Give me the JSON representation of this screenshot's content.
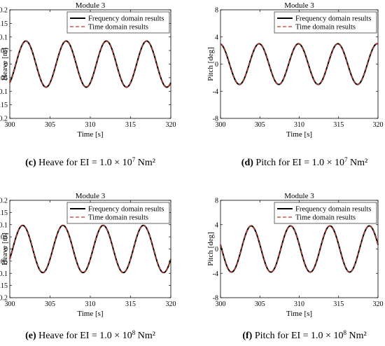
{
  "chart_data": [
    {
      "type": "line",
      "title": "Module 3",
      "xlabel": "Time [s]",
      "ylabel": "Heave [m]",
      "xlim": [
        300,
        320
      ],
      "ylim": [
        -0.2,
        0.2
      ],
      "x_ticks": [
        "300",
        "305",
        "310",
        "315",
        "320"
      ],
      "y_ticks": [
        "0.2",
        "0.15",
        "0.1",
        "0.05",
        "0",
        "-0.05",
        "-0.1",
        "-0.15",
        "-0.2"
      ],
      "legend_position": "top-right",
      "period": 5,
      "amplitude": 0.085,
      "first_peak_x": 302,
      "series": [
        {
          "name": "Frequency domain results",
          "style": "solid",
          "color": "#000000"
        },
        {
          "name": "Time domain results",
          "style": "dashed",
          "color": "#c0392b"
        }
      ],
      "caption_letter": "(c)",
      "caption_text": " Heave for EI = 1.0 × 10",
      "caption_exp": "7",
      "caption_unit": " Nm²"
    },
    {
      "type": "line",
      "title": "Module 3",
      "xlabel": "Time [s]",
      "ylabel": "Pitch [deg]",
      "xlim": [
        300,
        320
      ],
      "ylim": [
        -8,
        8
      ],
      "x_ticks": [
        "300",
        "305",
        "310",
        "315",
        "320"
      ],
      "y_ticks": [
        "8",
        "4",
        "0",
        "-4",
        "-8"
      ],
      "legend_position": "top-right",
      "period": 5,
      "amplitude": 3.0,
      "first_peak_x": 304.9,
      "series": [
        {
          "name": "Frequency domain results",
          "style": "solid",
          "color": "#000000"
        },
        {
          "name": "Time domain results",
          "style": "dashed",
          "color": "#c0392b"
        }
      ],
      "caption_letter": "(d)",
      "caption_text": " Pitch for EI = 1.0 × 10",
      "caption_exp": "7",
      "caption_unit": " Nm²"
    },
    {
      "type": "line",
      "title": "Module 3",
      "xlabel": "Time [s]",
      "ylabel": "Heave [m]",
      "xlim": [
        300,
        320
      ],
      "ylim": [
        -0.2,
        0.2
      ],
      "x_ticks": [
        "300",
        "305",
        "310",
        "315",
        "320"
      ],
      "y_ticks": [
        "0.2",
        "0.15",
        "0.1",
        "0.05",
        "0",
        "-0.05",
        "-0.1",
        "-0.15",
        "-0.2"
      ],
      "legend_position": "top-right",
      "period": 5,
      "amplitude": 0.097,
      "first_peak_x": 301.6,
      "series": [
        {
          "name": "Frequency domain results",
          "style": "solid",
          "color": "#000000"
        },
        {
          "name": "Time domain results",
          "style": "dashed",
          "color": "#c0392b"
        }
      ],
      "caption_letter": "(e)",
      "caption_text": " Heave for EI = 1.0 × 10",
      "caption_exp": "8",
      "caption_unit": " Nm²"
    },
    {
      "type": "line",
      "title": "Module 3",
      "xlabel": "Time [s]",
      "ylabel": "Pitch [deg]",
      "xlim": [
        300,
        320
      ],
      "ylim": [
        -8,
        8
      ],
      "x_ticks": [
        "300",
        "305",
        "310",
        "315",
        "320"
      ],
      "y_ticks": [
        "8",
        "4",
        "0",
        "-4",
        "-8"
      ],
      "legend_position": "top-right",
      "period": 5,
      "amplitude": 3.8,
      "first_peak_x": 303.9,
      "series": [
        {
          "name": "Frequency domain results",
          "style": "solid",
          "color": "#000000"
        },
        {
          "name": "Time domain results",
          "style": "dashed",
          "color": "#c0392b"
        }
      ],
      "caption_letter": "(f)",
      "caption_text": " Pitch for EI = 1.0 × 10",
      "caption_exp": "8",
      "caption_unit": " Nm²"
    }
  ]
}
